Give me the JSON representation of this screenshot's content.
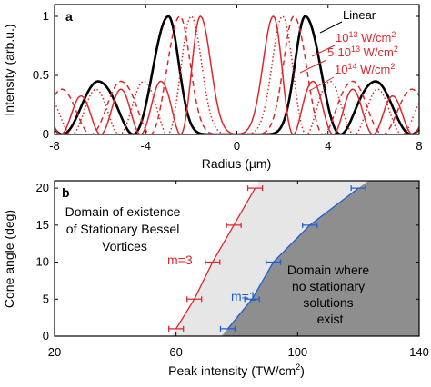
{
  "chart_data": [
    {
      "type": "line",
      "panel_label": "a",
      "xlabel": "Radius (µm)",
      "ylabel": "Intensity (arb.u.)",
      "xlim": [
        -8,
        8
      ],
      "ylim": [
        0,
        1.1
      ],
      "xticks": [
        "-8",
        "-4",
        "0",
        "4",
        "8"
      ],
      "yticks": [
        "0",
        "0.5",
        "1"
      ],
      "legend_placement": "top-right",
      "series": [
        {
          "name": "Linear",
          "color": "#000000",
          "style": "solid",
          "peak_radius": 3.0,
          "ring_period": 3.1
        },
        {
          "name_base": "10",
          "name_exp": "13",
          "name_unit": " W/cm",
          "name_unit_exp": "2",
          "color": "#e0262a",
          "style": "dashed",
          "peak_radius": 2.5,
          "ring_period": 2.6
        },
        {
          "name_base": "5·10",
          "name_exp": "13",
          "name_unit": " W/cm",
          "name_unit_exp": "2",
          "color": "#e0262a",
          "style": "dotted",
          "peak_radius": 2.0,
          "ring_period": 2.1
        },
        {
          "name_base": "10",
          "name_exp": "14",
          "name_unit": " W/cm",
          "name_unit_exp": "2",
          "color": "#e0262a",
          "style": "solid",
          "peak_radius": 1.6,
          "ring_period": 1.75
        }
      ]
    },
    {
      "type": "line",
      "panel_label": "b",
      "xlabel_main": "Peak intensity (TW/cm",
      "xlabel_exp": "2",
      "xlabel_close": ")",
      "ylabel": "Cone angle (deg)",
      "xlim": [
        20,
        140
      ],
      "ylim": [
        0,
        21
      ],
      "xticks": [
        "20",
        "60",
        "100",
        "140"
      ],
      "yticks": [
        "0",
        "5",
        "10",
        "15",
        "20"
      ],
      "series": [
        {
          "name": "m=3",
          "color": "#e0262a",
          "x": [
            60,
            66,
            72,
            79,
            86
          ],
          "y": [
            1,
            5,
            10,
            15,
            20
          ]
        },
        {
          "name": "m=1",
          "color": "#1f5fd0",
          "x": [
            77,
            85,
            92,
            104,
            120
          ],
          "y": [
            1,
            5,
            10,
            15,
            20
          ]
        }
      ],
      "annotations": {
        "existence": [
          "Domain of existence",
          "of Stationary Bessel",
          "Vortices"
        ],
        "no_solution": [
          "Domain where",
          "no stationary",
          "solutions",
          "exist"
        ]
      },
      "colors": {
        "existence_fill": "#e6e6e6",
        "no_solution_fill": "#8e8e8e"
      }
    }
  ]
}
